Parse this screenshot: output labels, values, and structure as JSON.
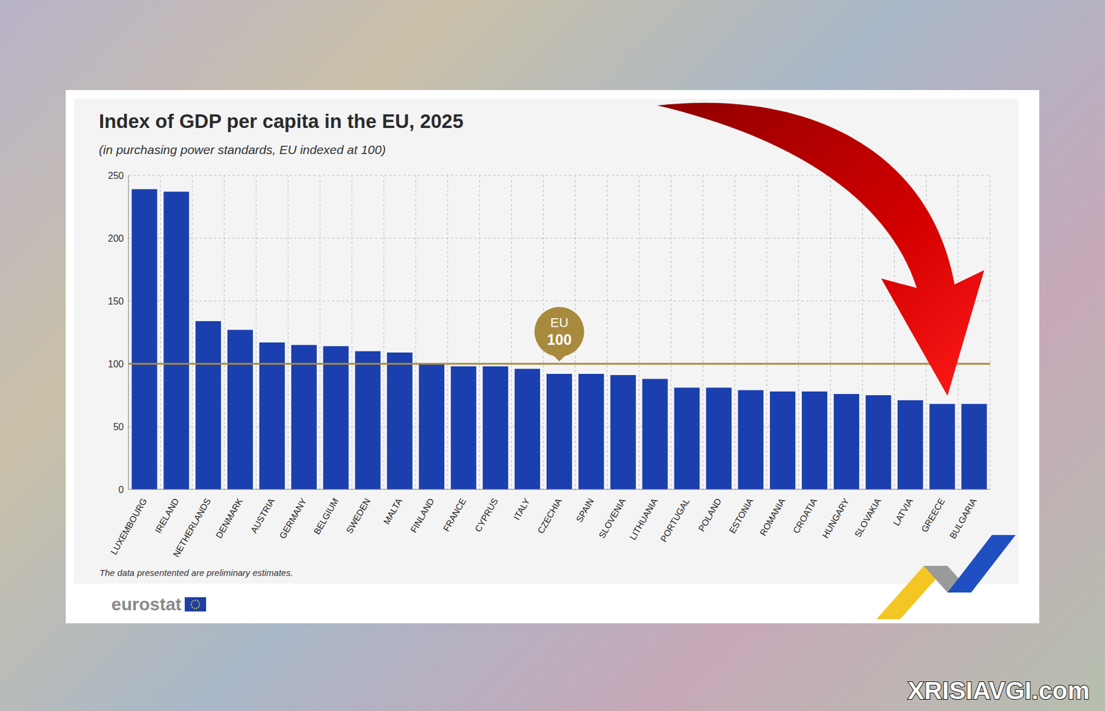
{
  "chart_data": {
    "type": "bar",
    "title": "Index of GDP per capita in the EU, 2025",
    "subtitle": "(in purchasing power standards, EU indexed at 100)",
    "categories": [
      "LUXEMBOURG",
      "IRELAND",
      "NETHERLANDS",
      "DENMARK",
      "AUSTRIA",
      "GERMANY",
      "BELGIUM",
      "SWEDEN",
      "MALTA",
      "FINLAND",
      "FRANCE",
      "CYPRUS",
      "ITALY",
      "CZECHIA",
      "SPAIN",
      "SLOVENIA",
      "LITHUANIA",
      "PORTUGAL",
      "POLAND",
      "ESTONIA",
      "ROMANIA",
      "CROATIA",
      "HUNGARY",
      "SLOVAKIA",
      "LATVIA",
      "GREECE",
      "BULGARIA"
    ],
    "values": [
      239,
      237,
      134,
      127,
      117,
      115,
      114,
      110,
      109,
      100,
      98,
      98,
      96,
      92,
      92,
      91,
      88,
      81,
      81,
      79,
      78,
      78,
      76,
      75,
      71,
      68,
      68
    ],
    "color": "#1b3fae",
    "ylim": [
      0,
      250
    ],
    "yticks": [
      0,
      50,
      100,
      150,
      200,
      250
    ],
    "grid": true,
    "reference_line": {
      "label": "EU",
      "value": 100,
      "category": "CZECHIA",
      "color": "#a88a3c"
    },
    "footnote": "The data presentented are preliminary estimates.",
    "source": "eurostat",
    "watermark": "XRISIAVGI.com"
  }
}
